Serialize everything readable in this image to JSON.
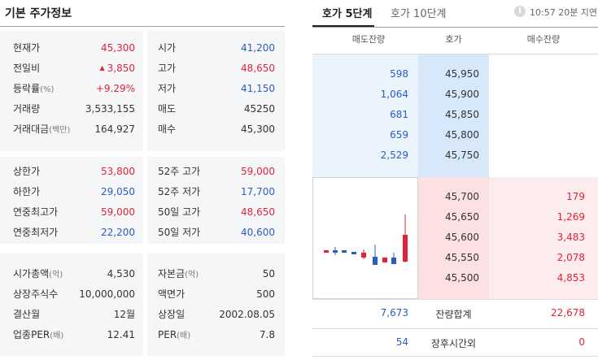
{
  "basic": {
    "title": "기본 주가정보",
    "block1": {
      "left": [
        {
          "label": "현재가",
          "unit": "",
          "value": "45,300",
          "color": "red"
        },
        {
          "label": "전일비",
          "unit": "",
          "value": "3,850",
          "color": "red",
          "icon": "▲"
        },
        {
          "label": "등락률",
          "unit": "(%)",
          "value": "+9.29%",
          "color": "red"
        },
        {
          "label": "거래량",
          "unit": "",
          "value": "3,533,155",
          "color": "dark"
        },
        {
          "label": "거래대금",
          "unit": "(백만)",
          "value": "164,927",
          "color": "dark"
        }
      ],
      "right": [
        {
          "label": "시가",
          "value": "41,200",
          "color": "blue"
        },
        {
          "label": "고가",
          "value": "48,650",
          "color": "red"
        },
        {
          "label": "저가",
          "value": "41,150",
          "color": "blue"
        },
        {
          "label": "매도",
          "value": "45250",
          "color": "dark"
        },
        {
          "label": "매수",
          "value": "45,300",
          "color": "dark"
        }
      ]
    },
    "block2": {
      "left": [
        {
          "label": "상한가",
          "value": "53,800",
          "color": "red"
        },
        {
          "label": "하한가",
          "value": "29,050",
          "color": "blue"
        },
        {
          "label": "연중최고가",
          "value": "59,000",
          "color": "red"
        },
        {
          "label": "연중최저가",
          "value": "22,200",
          "color": "blue"
        }
      ],
      "right": [
        {
          "label": "52주 고가",
          "value": "59,000",
          "color": "red"
        },
        {
          "label": "52주 저가",
          "value": "17,700",
          "color": "blue"
        },
        {
          "label": "50일 고가",
          "value": "48,650",
          "color": "red"
        },
        {
          "label": "50일 저가",
          "value": "40,600",
          "color": "blue"
        }
      ]
    },
    "block3": {
      "left": [
        {
          "label": "시가총액",
          "unit": "(억)",
          "value": "4,530"
        },
        {
          "label": "상장주식수",
          "unit": "",
          "value": "10,000,000"
        },
        {
          "label": "결산월",
          "unit": "",
          "value": "12월"
        },
        {
          "label": "업종PER",
          "unit": "(배)",
          "value": "12.41"
        }
      ],
      "right": [
        {
          "label": "자본금",
          "unit": "(억)",
          "value": "50"
        },
        {
          "label": "액면가",
          "unit": "",
          "value": "500"
        },
        {
          "label": "상장일",
          "unit": "",
          "value": "2002.08.05"
        },
        {
          "label": "PER",
          "unit": "(배)",
          "value": "7.8"
        }
      ]
    }
  },
  "orderbook": {
    "tabs": {
      "active": "호가 5단계",
      "inactive": "호가 10단계"
    },
    "info_icon": "i",
    "time": "10:57 20분 지연",
    "headers": {
      "ask_volume": "매도잔량",
      "price": "호가",
      "bid_volume": "매수잔량"
    },
    "asks": [
      {
        "volume": "598",
        "price": "45,950"
      },
      {
        "volume": "1,064",
        "price": "45,900"
      },
      {
        "volume": "681",
        "price": "45,850"
      },
      {
        "volume": "659",
        "price": "45,800"
      },
      {
        "volume": "2,529",
        "price": "45,750"
      }
    ],
    "bids": [
      {
        "price": "45,700",
        "volume": "179"
      },
      {
        "price": "45,650",
        "volume": "1,269"
      },
      {
        "price": "45,600",
        "volume": "3,483"
      },
      {
        "price": "45,550",
        "volume": "2,078"
      },
      {
        "price": "45,500",
        "volume": "4,853"
      }
    ],
    "total": {
      "ask": "7,673",
      "label": "잔량합계",
      "bid": "22,678"
    },
    "after_hours": {
      "ask": "54",
      "label": "장후시간외",
      "bid": "0"
    },
    "colors": {
      "up": "#e0233a",
      "down": "#2c5cc0"
    }
  }
}
